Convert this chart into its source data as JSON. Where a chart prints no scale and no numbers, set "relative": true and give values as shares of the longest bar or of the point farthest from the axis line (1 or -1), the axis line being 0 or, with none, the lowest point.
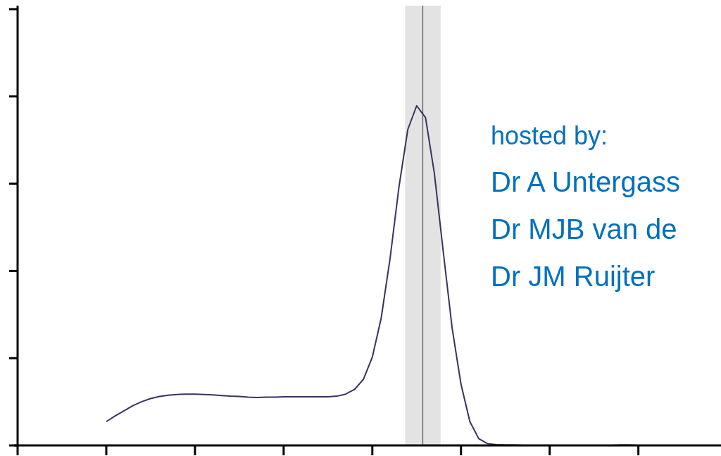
{
  "chart_data": {
    "type": "line",
    "relative": true,
    "marker": "none",
    "line_style": "solid",
    "categories": [
      null,
      null,
      null,
      null,
      null,
      null,
      null,
      null,
      null,
      null,
      null,
      null,
      null,
      null,
      null,
      null,
      null,
      null,
      null,
      null,
      null,
      null,
      null,
      null,
      null,
      null,
      null,
      null,
      null,
      null,
      null,
      null,
      null,
      null,
      null,
      null,
      null,
      null,
      null,
      null,
      null,
      null,
      null,
      null,
      null,
      null,
      null,
      null,
      null,
      null,
      null,
      null,
      null,
      null,
      null,
      null,
      null,
      null,
      null,
      null,
      null,
      null,
      null,
      null,
      null,
      null,
      null,
      null,
      null,
      null,
      null,
      null,
      null,
      null,
      null,
      null,
      null,
      null,
      null,
      null
    ],
    "series": [
      {
        "color": "#3b3060",
        "values": [
          null,
          null,
          null,
          null,
          null,
          null,
          null,
          null,
          null,
          null,
          0.07,
          0.087,
          0.102,
          0.117,
          0.129,
          0.138,
          0.144,
          0.148,
          0.15,
          0.151,
          0.151,
          0.15,
          0.149,
          0.147,
          0.145,
          0.144,
          0.142,
          0.141,
          0.142,
          0.142,
          0.143,
          0.143,
          0.143,
          0.143,
          0.143,
          0.143,
          0.145,
          0.151,
          0.165,
          0.195,
          0.26,
          0.375,
          0.55,
          0.76,
          0.93,
          1,
          0.965,
          0.8,
          0.57,
          0.345,
          0.18,
          0.07,
          0.02,
          0.005,
          0.002,
          0.001,
          0.001,
          0,
          0,
          0,
          0,
          0,
          0,
          0,
          0,
          0,
          0,
          0,
          0.001,
          0.001,
          0,
          null,
          null,
          null,
          null,
          null,
          null,
          null,
          null,
          null
        ]
      }
    ],
    "annotations": [
      "hosted by:",
      "Dr A Untergass",
      "Dr MJB van de",
      "Dr JM Ruijter"
    ]
  }
}
